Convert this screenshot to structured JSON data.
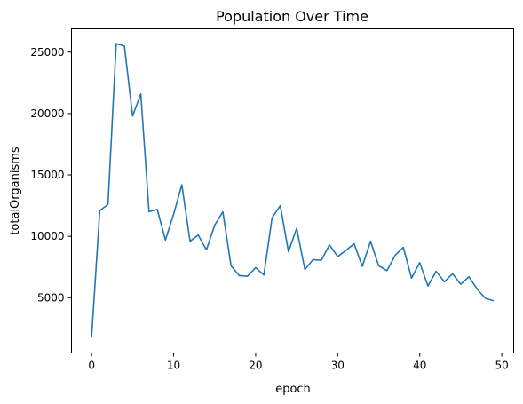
{
  "chart_data": {
    "type": "line",
    "title": "Population Over Time",
    "xlabel": "epoch",
    "ylabel": "totalOrganisms",
    "xlim": [
      -2.45,
      51.45
    ],
    "ylim": [
      500,
      26900
    ],
    "xticks": [
      0,
      10,
      20,
      30,
      40,
      50
    ],
    "yticks": [
      5000,
      10000,
      15000,
      20000,
      25000
    ],
    "grid": false,
    "line_color": "#1f77b4",
    "series": [
      {
        "x": [
          0,
          1,
          2,
          3,
          4,
          5,
          6,
          7,
          8,
          9,
          10,
          11,
          12,
          13,
          14,
          15,
          16,
          17,
          18,
          19,
          20,
          21,
          22,
          23,
          24,
          25,
          26,
          27,
          28,
          29,
          30,
          31,
          32,
          33,
          34,
          35,
          36,
          37,
          38,
          39,
          40,
          41,
          42,
          43,
          44,
          45,
          46,
          47,
          48,
          49
        ],
        "values": [
          1800,
          12100,
          12600,
          25700,
          25500,
          19800,
          21600,
          12000,
          12200,
          9700,
          11800,
          14200,
          9600,
          10100,
          8900,
          10900,
          12000,
          7600,
          6800,
          6750,
          7450,
          6850,
          11500,
          12500,
          8750,
          10650,
          7300,
          8100,
          8050,
          9300,
          8350,
          8850,
          9400,
          7550,
          9600,
          7600,
          7200,
          8450,
          9100,
          6600,
          7850,
          5950,
          7150,
          6300,
          6950,
          6100,
          6700,
          5700,
          4950,
          4750
        ]
      }
    ]
  }
}
